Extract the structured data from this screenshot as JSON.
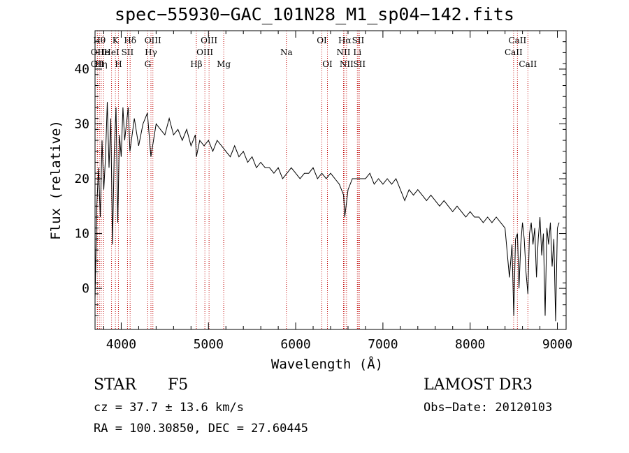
{
  "title": "spec−55930−GAC_101N28_M1_sp04−142.fits",
  "info": {
    "class": "STAR",
    "subclass": "F5",
    "survey": "LAMOST DR3",
    "cz": "cz = 37.7 ± 13.6 km/s",
    "obs_date": "Obs−Date: 20120103",
    "radec": "RA = 100.30850, DEC =  27.60445"
  },
  "chart_data": {
    "type": "line",
    "xlabel": "Wavelength (Å)",
    "ylabel": "Flux (relative)",
    "xlim": [
      3700,
      9100
    ],
    "ylim": [
      -7.5,
      47
    ],
    "xticks": [
      4000,
      5000,
      6000,
      7000,
      8000,
      9000
    ],
    "yticks": [
      0,
      10,
      20,
      30,
      40
    ],
    "grid": false,
    "series": [
      {
        "x": [
          3700,
          3720,
          3740,
          3760,
          3780,
          3800,
          3820,
          3840,
          3860,
          3880,
          3900,
          3920,
          3940,
          3960,
          3980,
          4000,
          4020,
          4040,
          4060,
          4080,
          4100,
          4150,
          4200,
          4250,
          4300,
          4340,
          4400,
          4450,
          4500,
          4550,
          4600,
          4650,
          4700,
          4750,
          4800,
          4850,
          4862,
          4900,
          4950,
          5000,
          5050,
          5100,
          5150,
          5200,
          5250,
          5300,
          5350,
          5400,
          5450,
          5500,
          5550,
          5600,
          5650,
          5700,
          5750,
          5800,
          5850,
          5900,
          5950,
          6000,
          6050,
          6100,
          6150,
          6200,
          6250,
          6300,
          6350,
          6400,
          6450,
          6500,
          6550,
          6563,
          6600,
          6650,
          6700,
          6750,
          6800,
          6850,
          6900,
          6950,
          7000,
          7050,
          7100,
          7150,
          7200,
          7250,
          7300,
          7350,
          7400,
          7450,
          7500,
          7550,
          7600,
          7650,
          7700,
          7750,
          7800,
          7850,
          7900,
          7950,
          8000,
          8050,
          8100,
          8150,
          8200,
          8250,
          8300,
          8350,
          8400,
          8450,
          8480,
          8500,
          8520,
          8542,
          8560,
          8580,
          8600,
          8620,
          8640,
          8662,
          8680,
          8700,
          8720,
          8740,
          8760,
          8780,
          8800,
          8820,
          8840,
          8860,
          8880,
          8900,
          8920,
          8940,
          8960,
          8980,
          9000,
          9020
        ],
        "y": [
          -2,
          15,
          22,
          13,
          27,
          18,
          24,
          34,
          22,
          31,
          8,
          25,
          33,
          12,
          28,
          24,
          33,
          27,
          30,
          33,
          25,
          31,
          26,
          30,
          32,
          24,
          30,
          29,
          28,
          31,
          28,
          29,
          27,
          29,
          26,
          28,
          24,
          27,
          26,
          27,
          25,
          27,
          26,
          25,
          24,
          26,
          24,
          25,
          23,
          24,
          22,
          23,
          22,
          22,
          21,
          22,
          20,
          21,
          22,
          21,
          20,
          21,
          21,
          22,
          20,
          21,
          20,
          21,
          20,
          19,
          17,
          13,
          18,
          20,
          20,
          20,
          20,
          21,
          19,
          20,
          19,
          20,
          19,
          20,
          18,
          16,
          18,
          17,
          18,
          17,
          16,
          17,
          16,
          15,
          16,
          15,
          14,
          15,
          14,
          13,
          14,
          13,
          13,
          12,
          13,
          12,
          13,
          12,
          11,
          2,
          8,
          -5,
          9,
          10,
          0,
          8,
          12,
          9,
          3,
          -1,
          10,
          12,
          8,
          11,
          2,
          9,
          13,
          6,
          10,
          -5,
          11,
          8,
          12,
          4,
          9,
          -6,
          11,
          12
        ]
      }
    ],
    "lines": [
      {
        "w": 3750,
        "label": "Hθ",
        "row": 1
      },
      {
        "w": 3727,
        "label": "OII",
        "row": 2
      },
      {
        "w": 3727,
        "label": "OII",
        "row": 3
      },
      {
        "w": 3770,
        "label": "Hη",
        "row": 3
      },
      {
        "w": 3798,
        "label": "He",
        "row": 2
      },
      {
        "w": 3889,
        "label": "HeI",
        "row": 2
      },
      {
        "w": 3934,
        "label": "K",
        "row": 1
      },
      {
        "w": 3968,
        "label": "H",
        "row": 3
      },
      {
        "w": 4072,
        "label": "SII",
        "row": 2
      },
      {
        "w": 4102,
        "label": "Hδ",
        "row": 1
      },
      {
        "w": 4304,
        "label": "G",
        "row": 3
      },
      {
        "w": 4341,
        "label": "Hγ",
        "row": 2
      },
      {
        "w": 4363,
        "label": "OIII",
        "row": 1
      },
      {
        "w": 4861,
        "label": "Hβ",
        "row": 3
      },
      {
        "w": 4959,
        "label": "OIII",
        "row": 2
      },
      {
        "w": 5007,
        "label": "OIII",
        "row": 1
      },
      {
        "w": 5175,
        "label": "Mg",
        "row": 3
      },
      {
        "w": 5894,
        "label": "Na",
        "row": 2
      },
      {
        "w": 6300,
        "label": "OI",
        "row": 1
      },
      {
        "w": 6364,
        "label": "OI",
        "row": 3
      },
      {
        "w": 6548,
        "label": "NII",
        "row": 2
      },
      {
        "w": 6563,
        "label": "Hα",
        "row": 1
      },
      {
        "w": 6583,
        "label": "NII",
        "row": 3
      },
      {
        "w": 6707,
        "label": "Li",
        "row": 2
      },
      {
        "w": 6716,
        "label": "SII",
        "row": 1
      },
      {
        "w": 6731,
        "label": "SII",
        "row": 3
      },
      {
        "w": 8498,
        "label": "CaII",
        "row": 2
      },
      {
        "w": 8542,
        "label": "CaII",
        "row": 1
      },
      {
        "w": 8662,
        "label": "CaII",
        "row": 3
      }
    ]
  }
}
